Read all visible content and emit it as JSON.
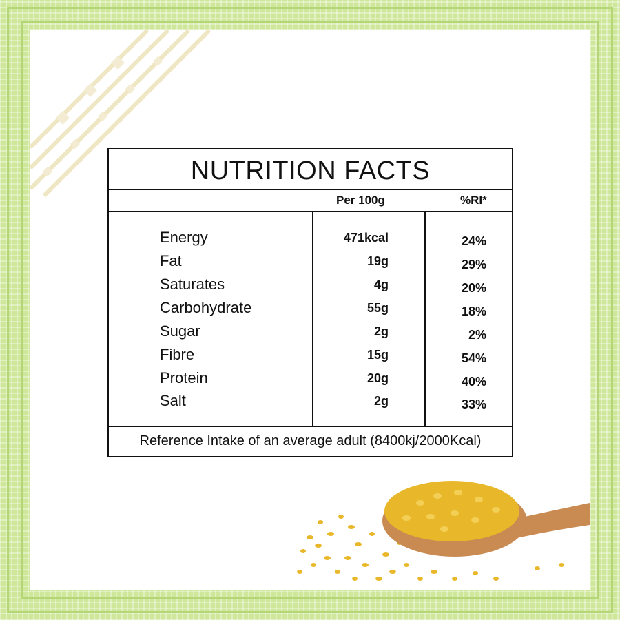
{
  "title": "NUTRITION FACTS",
  "headers": {
    "per": "Per 100g",
    "ri": "%RI*"
  },
  "rows": [
    {
      "name": "Energy",
      "amount": "471kcal",
      "ri": "24%"
    },
    {
      "name": "Fat",
      "amount": "19g",
      "ri": "29%"
    },
    {
      "name": "Saturates",
      "amount": "4g",
      "ri": "20%"
    },
    {
      "name": "Carbohydrate",
      "amount": "55g",
      "ri": "18%"
    },
    {
      "name": "Sugar",
      "amount": "2g",
      "ri": "2%"
    },
    {
      "name": "Fibre",
      "amount": "15g",
      "ri": "54%"
    },
    {
      "name": "Protein",
      "amount": "20g",
      "ri": "40%"
    },
    {
      "name": "Salt",
      "amount": "2g",
      "ri": "33%"
    }
  ],
  "footer": "Reference Intake of an average adult (8400kj/2000Kcal)",
  "colors": {
    "frame": "#cfe79b",
    "frame_stripe": "#b4d676",
    "lentil": "#e9b82a",
    "spoon": "#c98b52"
  },
  "icons": {
    "corner": "ornamental-pattern",
    "illustration": "wooden-spoon-with-lentils"
  }
}
